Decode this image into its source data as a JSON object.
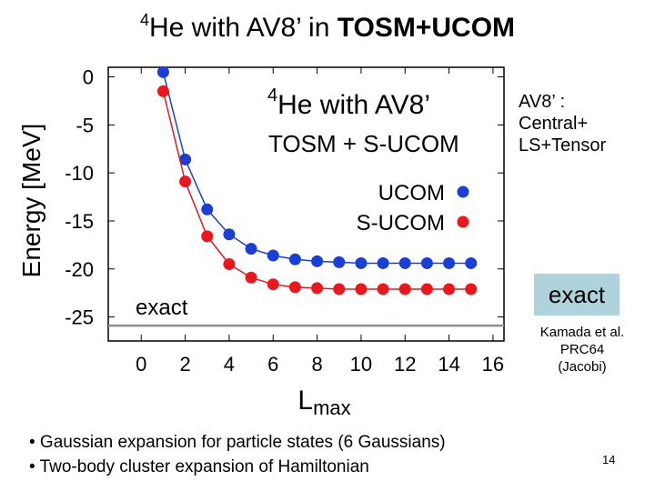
{
  "slide": {
    "title_sup": "4",
    "title_main": "He with AV8’ in ",
    "title_bold": "TOSM+UCOM",
    "note_line1": "AV8’ :",
    "note_line2": "Central+",
    "note_line3": "LS+Tensor",
    "exact_box": "exact",
    "ref_line1": "Kamada et al.",
    "ref_line2": "PRC64",
    "ref_line3": "(Jacobi)",
    "bullets": [
      "• Gaussian expansion for particle states (6 Gaussians)",
      "• Two-body cluster expansion of Hamiltonian"
    ],
    "page_number": "14"
  },
  "chart_data": {
    "type": "line",
    "inner_title_sup": "4",
    "inner_title_main": "He with AV8’",
    "inner_subtitle": "TOSM + S-UCOM",
    "xlabel_main": "L",
    "xlabel_sub": "max",
    "ylabel": "Energy [MeV]",
    "xlim": [
      -1.5,
      16.5
    ],
    "ylim": [
      -27.5,
      1
    ],
    "xticks": [
      0,
      2,
      4,
      6,
      8,
      10,
      12,
      14,
      16
    ],
    "yticks": [
      0,
      -5,
      -10,
      -15,
      -20,
      -25
    ],
    "exact_value": -25.9,
    "exact_label": "exact",
    "x": [
      1,
      2,
      3,
      4,
      5,
      6,
      7,
      8,
      9,
      10,
      11,
      12,
      13,
      14,
      15
    ],
    "series": [
      {
        "name": "UCOM",
        "color": "#1a3fd6",
        "values": [
          0.5,
          -8.6,
          -13.8,
          -16.4,
          -17.9,
          -18.6,
          -19.0,
          -19.2,
          -19.3,
          -19.4,
          -19.4,
          -19.4,
          -19.4,
          -19.4,
          -19.4
        ]
      },
      {
        "name": "S-UCOM",
        "color": "#e8181c",
        "values": [
          -1.5,
          -10.9,
          -16.6,
          -19.5,
          -20.9,
          -21.6,
          -21.9,
          -22.0,
          -22.1,
          -22.1,
          -22.1,
          -22.1,
          -22.1,
          -22.1,
          -22.1
        ]
      }
    ],
    "grid": false,
    "legend": "upper-right"
  }
}
